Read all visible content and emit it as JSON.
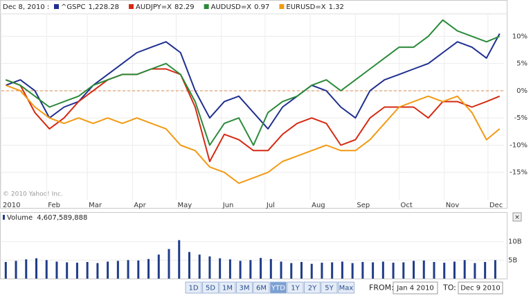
{
  "legend_date": "Dec 8, 2010 :",
  "copyright": "© 2010 Yahoo! Inc.",
  "chart_data": [
    {
      "type": "line",
      "x": [
        3,
        13,
        23,
        33,
        43,
        53,
        63,
        73,
        83,
        93,
        103,
        113,
        123,
        133,
        143,
        153,
        163,
        173,
        183,
        193,
        203,
        213,
        223,
        233,
        243,
        253,
        263,
        273,
        283,
        293,
        303,
        313,
        323,
        333,
        342
      ],
      "series": [
        {
          "name": "^GSPC",
          "quote": "1,228.28",
          "color": "#1f2f8f",
          "values": [
            1,
            2,
            0,
            -5,
            -3,
            -2,
            1,
            3,
            5,
            7,
            8,
            9,
            7,
            0,
            -5,
            -2,
            -1,
            -4,
            -7,
            -3,
            -1,
            1,
            0,
            -3,
            -5,
            0,
            2,
            3,
            4,
            5,
            7,
            9,
            8,
            6,
            10.5
          ]
        },
        {
          "name": "AUDJPY=X",
          "quote": "82.29",
          "color": "#d42a12",
          "values": [
            2,
            1,
            -4,
            -7,
            -5,
            -2,
            0,
            2,
            3,
            3,
            4,
            4,
            3,
            -3,
            -13,
            -8,
            -9,
            -11,
            -11,
            -8,
            -6,
            -5,
            -6,
            -10,
            -9,
            -5,
            -3,
            -3,
            -3,
            -5,
            -2,
            -2,
            -3,
            -2,
            -1
          ]
        },
        {
          "name": "AUDUSD=X",
          "quote": "0.97",
          "color": "#2a8a3a",
          "values": [
            2,
            1,
            -1,
            -3,
            -2,
            -1,
            1,
            2,
            3,
            3,
            4,
            5,
            3,
            -2,
            -10,
            -6,
            -5,
            -10,
            -4,
            -2,
            -1,
            1,
            2,
            0,
            2,
            4,
            6,
            8,
            8,
            10,
            13,
            11,
            10,
            9,
            10
          ]
        },
        {
          "name": "EURUSD=X",
          "quote": "1.32",
          "color": "#f29a12",
          "values": [
            1,
            0,
            -3,
            -5,
            -6,
            -5,
            -6,
            -5,
            -6,
            -5,
            -6,
            -7,
            -10,
            -11,
            -14,
            -15,
            -17,
            -16,
            -15,
            -13,
            -12,
            -11,
            -10,
            -11,
            -11,
            -9,
            -6,
            -3,
            -2,
            -1,
            -2,
            -1,
            -4,
            -9,
            -7
          ]
        }
      ],
      "xlim": [
        0,
        345
      ],
      "xticks": [
        {
          "value": 0,
          "label": "2010"
        },
        {
          "value": 31,
          "label": "Feb"
        },
        {
          "value": 59,
          "label": "Mar"
        },
        {
          "value": 90,
          "label": "Apr"
        },
        {
          "value": 120,
          "label": "May"
        },
        {
          "value": 151,
          "label": "Jun"
        },
        {
          "value": 181,
          "label": "Jul"
        },
        {
          "value": 212,
          "label": "Aug"
        },
        {
          "value": 243,
          "label": "Sep"
        },
        {
          "value": 273,
          "label": "Oct"
        },
        {
          "value": 304,
          "label": "Nov"
        },
        {
          "value": 334,
          "label": "Dec"
        }
      ],
      "ylim": [
        -20,
        14
      ],
      "yticks": [
        {
          "value": -15,
          "label": "-15%"
        },
        {
          "value": -10,
          "label": "-10%"
        },
        {
          "value": -5,
          "label": "-5%"
        },
        {
          "value": 0,
          "label": "0%"
        },
        {
          "value": 5,
          "label": "5%"
        },
        {
          "value": 10,
          "label": "10%"
        }
      ],
      "grid": true,
      "zero_line": true
    },
    {
      "type": "bar",
      "title": "Volume",
      "quote": "4,607,589,888",
      "color": "#1f3c88",
      "x": [
        3,
        10,
        17,
        24,
        31,
        38,
        45,
        52,
        59,
        66,
        73,
        80,
        87,
        94,
        101,
        108,
        115,
        122,
        129,
        136,
        143,
        150,
        157,
        164,
        171,
        178,
        185,
        192,
        199,
        206,
        213,
        220,
        227,
        234,
        241,
        248,
        255,
        262,
        269,
        276,
        283,
        290,
        297,
        304,
        311,
        318,
        325,
        332,
        339
      ],
      "values": [
        4.5,
        4.8,
        5.2,
        5.5,
        5.0,
        4.6,
        4.4,
        4.3,
        4.5,
        4.2,
        4.6,
        4.8,
        5.0,
        4.9,
        5.3,
        6.5,
        8.0,
        10.4,
        7.2,
        6.5,
        6.0,
        5.5,
        5.2,
        4.8,
        5.0,
        5.6,
        5.3,
        4.6,
        4.2,
        4.5,
        4.0,
        4.3,
        4.4,
        4.6,
        4.2,
        4.5,
        4.4,
        4.6,
        4.3,
        4.4,
        4.8,
        4.9,
        4.5,
        4.3,
        4.6,
        5.0,
        4.2,
        4.5,
        5.0
      ],
      "xlim": [
        0,
        345
      ],
      "ylim": [
        0,
        15
      ],
      "yticks": [
        {
          "value": 5,
          "label": "5B"
        },
        {
          "value": 10,
          "label": "10B"
        }
      ]
    }
  ],
  "controls": {
    "ranges": [
      "1D",
      "5D",
      "1M",
      "3M",
      "6M",
      "YTD",
      "1Y",
      "2Y",
      "5Y",
      "Max"
    ],
    "selected": 5,
    "from_label": "FROM:",
    "from": "Jan 4 2010",
    "to_label": "TO:",
    "to": "Dec 9 2010"
  }
}
